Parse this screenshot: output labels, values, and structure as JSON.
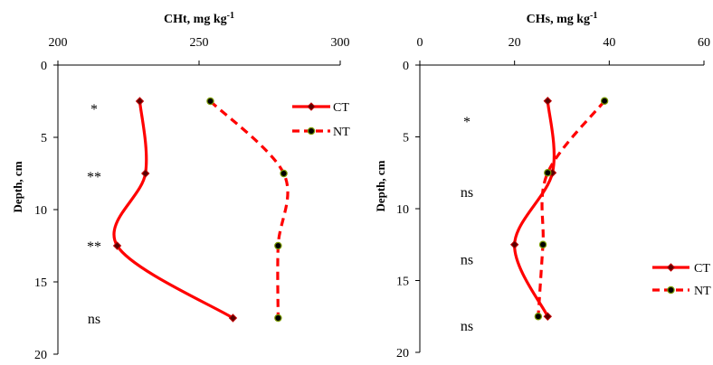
{
  "chart_data": [
    {
      "type": "line",
      "title": "CHt, mg kg",
      "title_superscript": "-1",
      "xlabel": "CHt, mg kg-1",
      "ylabel": "Depth, cm",
      "x_axis_position": "top",
      "y_axis_reversed": true,
      "xlim": [
        200,
        300
      ],
      "ylim": [
        0,
        20
      ],
      "x_ticks": [
        "200",
        "250",
        "300"
      ],
      "y_ticks": [
        "0",
        "5",
        "10",
        "15",
        "20"
      ],
      "grid": false,
      "legend_position": "top-right",
      "series": [
        {
          "name": "CT",
          "color": "#ff0000",
          "style": "solid",
          "marker": "diamond",
          "points": [
            [
              229,
              2.5
            ],
            [
              231,
              7.5
            ],
            [
              221,
              12.5
            ],
            [
              262,
              17.5
            ]
          ]
        },
        {
          "name": "NT",
          "color": "#ff0000",
          "style": "dashed",
          "marker": "circle",
          "points": [
            [
              254,
              2.5
            ],
            [
              280,
              7.5
            ],
            [
              278,
              12.5
            ],
            [
              278,
              17.5
            ]
          ]
        }
      ],
      "annotations": [
        {
          "text": "*",
          "depth": 3
        },
        {
          "text": "**",
          "depth": 7.7
        },
        {
          "text": "**",
          "depth": 12.5
        },
        {
          "text": "ns",
          "depth": 17.5
        }
      ]
    },
    {
      "type": "line",
      "title": "CHs, mg kg",
      "title_superscript": "-1",
      "xlabel": "CHs, mg kg-1",
      "ylabel": "Depth,  cm",
      "x_axis_position": "top",
      "y_axis_reversed": true,
      "xlim": [
        0,
        60
      ],
      "ylim": [
        0,
        20
      ],
      "x_ticks": [
        "0",
        "20",
        "40",
        "60"
      ],
      "y_ticks": [
        "0",
        "5",
        "10",
        "15",
        "20"
      ],
      "grid": false,
      "legend_position": "right",
      "series": [
        {
          "name": "CT",
          "color": "#ff0000",
          "style": "solid",
          "marker": "diamond",
          "points": [
            [
              27,
              2.5
            ],
            [
              28,
              7.5
            ],
            [
              20,
              12.5
            ],
            [
              27,
              17.5
            ]
          ]
        },
        {
          "name": "NT",
          "color": "#ff0000",
          "style": "dashed",
          "marker": "circle",
          "points": [
            [
              39,
              2.5
            ],
            [
              27,
              7.5
            ],
            [
              26,
              12.5
            ],
            [
              25,
              17.5
            ]
          ]
        }
      ],
      "annotations": [
        {
          "text": "*",
          "depth": 3.9
        },
        {
          "text": "ns",
          "depth": 8.8
        },
        {
          "text": "ns",
          "depth": 13.5
        },
        {
          "text": "ns",
          "depth": 18.1
        }
      ]
    }
  ]
}
